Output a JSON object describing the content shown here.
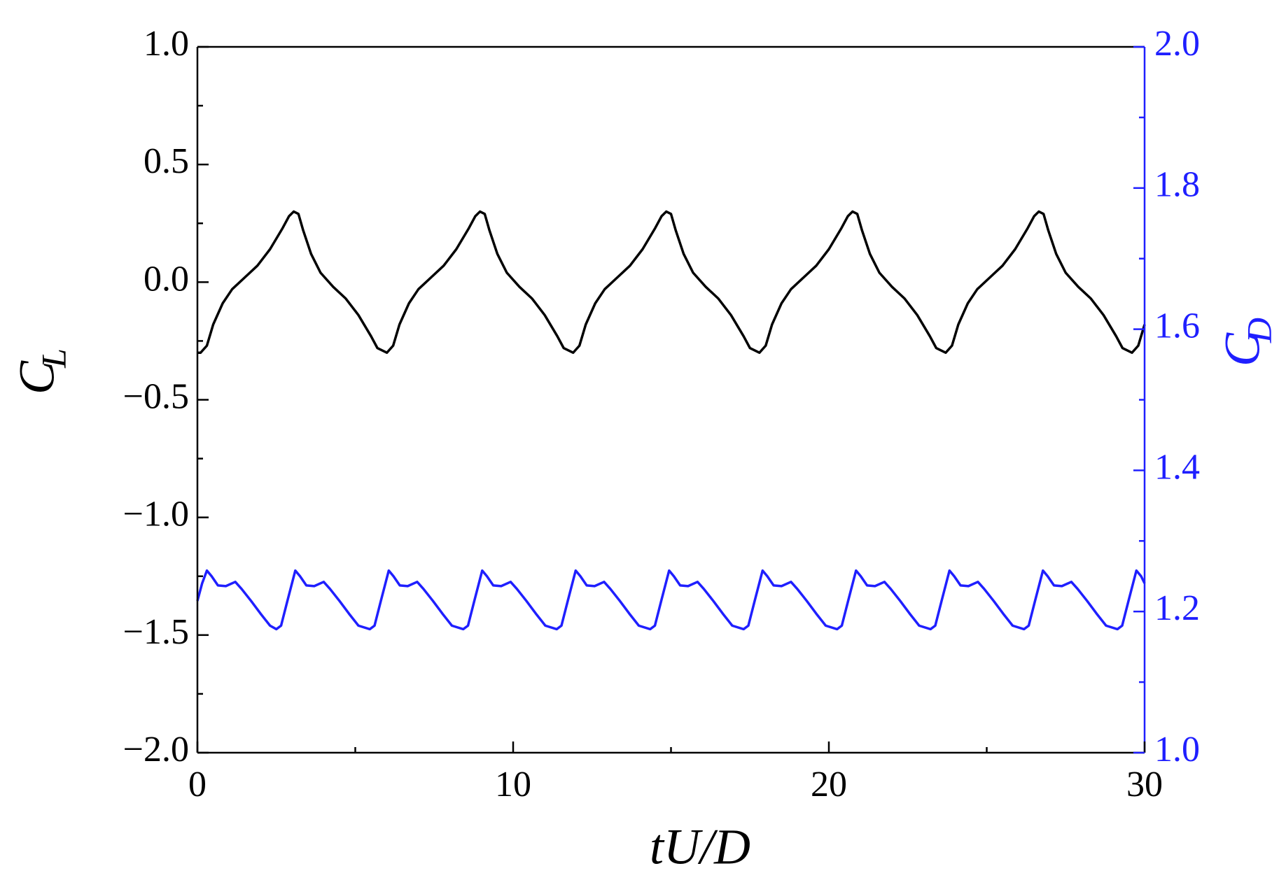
{
  "chart_data": {
    "type": "line",
    "xlabel": "tU/D",
    "ylabel": "C",
    "ylabel_sub": "L",
    "y2label": "C",
    "y2label_sub": "D",
    "xlim": [
      0,
      30
    ],
    "xticks": [
      0,
      10,
      20,
      30
    ],
    "ylim": [
      -2,
      1
    ],
    "yticks": [
      {
        "value": -2,
        "label": "−2.0"
      },
      {
        "value": -1.5,
        "label": "−1.5"
      },
      {
        "value": -1,
        "label": "−1.0"
      },
      {
        "value": -0.5,
        "label": "−0.5"
      },
      {
        "value": 0,
        "label": "0.0"
      },
      {
        "value": 0.5,
        "label": "0.5"
      },
      {
        "value": 1,
        "label": "1.0"
      }
    ],
    "y2lim": [
      1,
      2
    ],
    "y2ticks": [
      {
        "value": 1,
        "label": "1.0"
      },
      {
        "value": 1.2,
        "label": "1.2"
      },
      {
        "value": 1.4,
        "label": "1.4"
      },
      {
        "value": 1.6,
        "label": "1.6"
      },
      {
        "value": 1.8,
        "label": "1.8"
      },
      {
        "value": 2,
        "label": "2.0"
      }
    ],
    "y2color": "#1f1fff",
    "series": [
      {
        "name": "C_L",
        "color": "#000000",
        "axis": "y",
        "x": [
          0,
          0.1,
          0.3,
          0.5,
          0.8,
          1.1,
          1.5,
          1.9,
          2.3,
          2.7,
          2.9,
          3.05,
          3.2,
          3.35,
          3.6,
          3.9,
          4.3,
          4.7,
          5.1,
          5.5,
          5.7,
          6.0,
          6.2,
          6.4,
          6.7,
          7.0,
          7.4,
          7.8,
          8.2,
          8.6,
          8.8,
          8.95,
          9.1,
          9.25,
          9.5,
          9.8,
          10.2,
          10.6,
          11.0,
          11.4,
          11.6,
          11.9,
          12.1,
          12.3,
          12.6,
          12.9,
          13.3,
          13.7,
          14.1,
          14.5,
          14.7,
          14.85,
          15.0,
          15.15,
          15.4,
          15.7,
          16.1,
          16.5,
          16.9,
          17.3,
          17.5,
          17.8,
          18.0,
          18.2,
          18.5,
          18.8,
          19.2,
          19.6,
          20.0,
          20.4,
          20.6,
          20.75,
          20.9,
          21.05,
          21.3,
          21.6,
          22.0,
          22.4,
          22.8,
          23.2,
          23.4,
          23.7,
          23.9,
          24.1,
          24.4,
          24.7,
          25.1,
          25.5,
          25.9,
          26.3,
          26.5,
          26.65,
          26.8,
          26.95,
          27.2,
          27.5,
          27.9,
          28.3,
          28.7,
          29.1,
          29.3,
          29.6,
          29.8,
          30
        ],
        "values": [
          -0.3,
          -0.3,
          -0.27,
          -0.18,
          -0.09,
          -0.03,
          0.02,
          0.07,
          0.14,
          0.23,
          0.28,
          0.3,
          0.29,
          0.22,
          0.12,
          0.04,
          -0.02,
          -0.07,
          -0.14,
          -0.23,
          -0.28,
          -0.3,
          -0.27,
          -0.18,
          -0.09,
          -0.03,
          0.02,
          0.07,
          0.14,
          0.23,
          0.28,
          0.3,
          0.29,
          0.22,
          0.12,
          0.04,
          -0.02,
          -0.07,
          -0.14,
          -0.23,
          -0.28,
          -0.3,
          -0.27,
          -0.18,
          -0.09,
          -0.03,
          0.02,
          0.07,
          0.14,
          0.23,
          0.28,
          0.3,
          0.29,
          0.22,
          0.12,
          0.04,
          -0.02,
          -0.07,
          -0.14,
          -0.23,
          -0.28,
          -0.3,
          -0.27,
          -0.18,
          -0.09,
          -0.03,
          0.02,
          0.07,
          0.14,
          0.23,
          0.28,
          0.3,
          0.29,
          0.22,
          0.12,
          0.04,
          -0.02,
          -0.07,
          -0.14,
          -0.23,
          -0.28,
          -0.3,
          -0.27,
          -0.18,
          -0.09,
          -0.03,
          0.02,
          0.07,
          0.14,
          0.23,
          0.28,
          0.3,
          0.29,
          0.22,
          0.12,
          0.04,
          -0.02,
          -0.07,
          -0.14,
          -0.23,
          -0.28,
          -0.3,
          -0.27,
          -0.18
        ]
      },
      {
        "name": "C_D",
        "color": "#1f1fff",
        "axis": "y2",
        "x": [
          0,
          0.15,
          0.3,
          0.45,
          0.65,
          0.9,
          1.2,
          1.4,
          1.7,
          2.0,
          2.3,
          2.5,
          2.65,
          2.85,
          3.1,
          3.25,
          3.45,
          3.7,
          4.0,
          4.2,
          4.5,
          4.8,
          5.1,
          5.46,
          5.61,
          5.81,
          6.06,
          6.21,
          6.41,
          6.66,
          6.96,
          7.16,
          7.46,
          7.76,
          8.06,
          8.42,
          8.57,
          8.77,
          9.02,
          9.17,
          9.37,
          9.62,
          9.92,
          10.12,
          10.42,
          10.72,
          11.02,
          11.38,
          11.53,
          11.73,
          11.98,
          12.13,
          12.33,
          12.58,
          12.88,
          13.08,
          13.38,
          13.68,
          13.98,
          14.34,
          14.49,
          14.69,
          14.94,
          15.09,
          15.29,
          15.54,
          15.84,
          16.04,
          16.34,
          16.64,
          16.94,
          17.3,
          17.45,
          17.65,
          17.9,
          18.05,
          18.25,
          18.5,
          18.8,
          19.0,
          19.3,
          19.6,
          19.9,
          20.26,
          20.41,
          20.61,
          20.86,
          21.01,
          21.21,
          21.46,
          21.76,
          21.96,
          22.26,
          22.56,
          22.86,
          23.22,
          23.37,
          23.57,
          23.82,
          23.97,
          24.17,
          24.42,
          24.72,
          24.92,
          25.22,
          25.52,
          25.82,
          26.18,
          26.33,
          26.53,
          26.78,
          26.93,
          27.13,
          27.38,
          27.68,
          27.88,
          28.18,
          28.48,
          28.78,
          29.14,
          29.29,
          29.49,
          29.74,
          29.89,
          30
        ],
        "values": [
          1.215,
          1.24,
          1.258,
          1.25,
          1.237,
          1.236,
          1.242,
          1.232,
          1.215,
          1.197,
          1.18,
          1.175,
          1.18,
          1.215,
          1.258,
          1.25,
          1.237,
          1.236,
          1.242,
          1.232,
          1.215,
          1.197,
          1.18,
          1.175,
          1.18,
          1.215,
          1.258,
          1.25,
          1.237,
          1.236,
          1.242,
          1.232,
          1.215,
          1.197,
          1.18,
          1.175,
          1.18,
          1.215,
          1.258,
          1.25,
          1.237,
          1.236,
          1.242,
          1.232,
          1.215,
          1.197,
          1.18,
          1.175,
          1.18,
          1.215,
          1.258,
          1.25,
          1.237,
          1.236,
          1.242,
          1.232,
          1.215,
          1.197,
          1.18,
          1.175,
          1.18,
          1.215,
          1.258,
          1.25,
          1.237,
          1.236,
          1.242,
          1.232,
          1.215,
          1.197,
          1.18,
          1.175,
          1.18,
          1.215,
          1.258,
          1.25,
          1.237,
          1.236,
          1.242,
          1.232,
          1.215,
          1.197,
          1.18,
          1.175,
          1.18,
          1.215,
          1.258,
          1.25,
          1.237,
          1.236,
          1.242,
          1.232,
          1.215,
          1.197,
          1.18,
          1.175,
          1.18,
          1.215,
          1.258,
          1.25,
          1.237,
          1.236,
          1.242,
          1.232,
          1.215,
          1.197,
          1.18,
          1.175,
          1.18,
          1.215,
          1.258,
          1.25,
          1.237,
          1.236,
          1.242,
          1.232,
          1.215,
          1.197,
          1.18,
          1.175,
          1.18,
          1.215,
          1.258,
          1.25,
          1.24
        ]
      }
    ]
  }
}
